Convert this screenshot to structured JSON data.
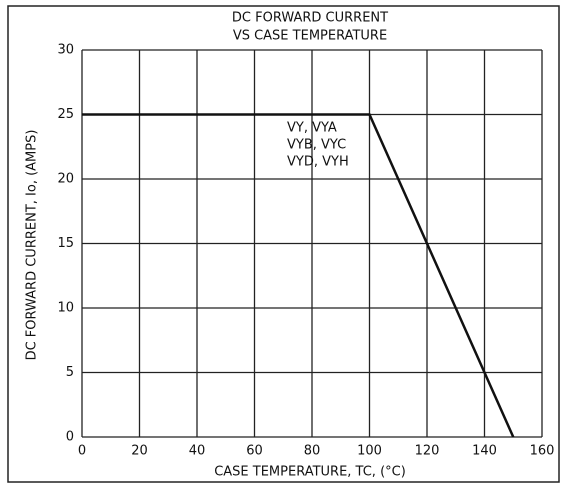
{
  "chart_data": {
    "type": "line",
    "title": "DC FORWARD CURRENT",
    "subtitle": "VS CASE TEMPERATURE",
    "xlabel": "CASE TEMPERATURE, TC, (°C)",
    "ylabel": "DC FORWARD CURRENT, Io, (AMPS)",
    "annotations": [
      "VY, VYA",
      "VYB, VYC",
      "VYD, VYH"
    ],
    "x": [
      0,
      100,
      150
    ],
    "values": [
      25,
      25,
      0
    ],
    "color": "#111111",
    "xlim": [
      0,
      160
    ],
    "xticks": [
      0,
      20,
      40,
      60,
      80,
      100,
      120,
      140,
      160
    ],
    "ylim": [
      0,
      30
    ],
    "yticks": [
      0,
      5,
      10,
      15,
      20,
      25,
      30
    ],
    "grid": true
  }
}
